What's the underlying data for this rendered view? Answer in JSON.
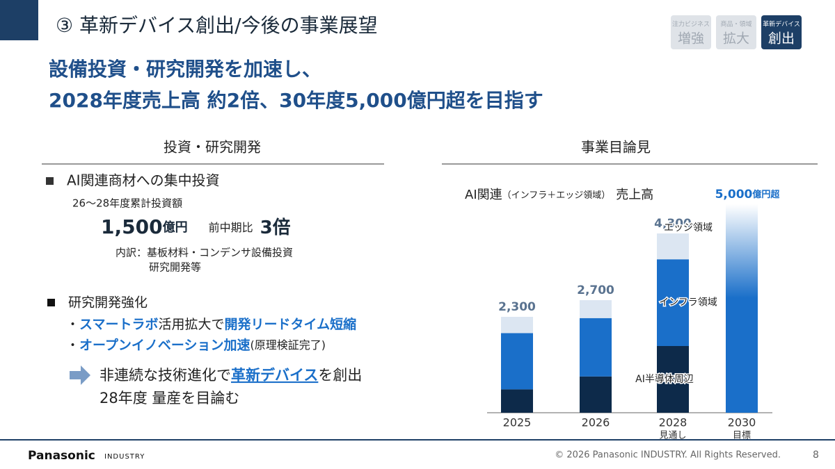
{
  "header": {
    "title": "③ 革新デバイス創出/今後の事業展望",
    "tabs": [
      {
        "small": "注力ビジネス",
        "big": "増強"
      },
      {
        "small": "商品・領域",
        "big": "拡大"
      },
      {
        "small": "革新デバイス",
        "big": "創出"
      }
    ]
  },
  "headline": [
    "設備投資・研究開発を加速し、",
    "2028年度売上高 約2倍、30年度5,000億円超を目指す"
  ],
  "left": {
    "heading": "投資・研究開発",
    "item1": {
      "title": "AI関連商材への集中投資",
      "sub": "26～28年度累計投資額",
      "amount": "1,500",
      "unit": "億円",
      "compare": "前中期比",
      "ratio": "3倍",
      "breakdown": [
        "内訳：基板材料・コンデンサ設備投資",
        "研究開発等"
      ]
    },
    "item2": {
      "title": "研究開発強化",
      "line1": [
        "・",
        "スマートラボ",
        "活用拡大で",
        "開発リードタイム短縮"
      ],
      "line2": [
        "・",
        "オープンイノベーション加速",
        "(原理検証完了)"
      ],
      "arrow": [
        "非連続な技術進化で",
        "革新デバイス",
        "を創出"
      ],
      "arrow2": "28年度 量産を目論む"
    }
  },
  "right": {
    "heading": "事業目論見"
  },
  "chart_data": {
    "type": "bar",
    "stacked": true,
    "title_parts": [
      "AI関連",
      "（インフラ＋エッジ領域）",
      "売上高"
    ],
    "categories": [
      "2025",
      "2026",
      "2028",
      "2030"
    ],
    "category_notes": [
      null,
      null,
      "見通し",
      "目標"
    ],
    "series": [
      {
        "name": "AI半導体周辺",
        "color": "#0d2a4a",
        "values": [
          560,
          870,
          1600,
          null
        ]
      },
      {
        "name": "インフラ領域",
        "color": "#1a6fc9",
        "values": [
          1350,
          1400,
          2080,
          null
        ]
      },
      {
        "name": "エッジ領域",
        "color": "#dce6f2",
        "values": [
          390,
          430,
          620,
          null
        ]
      }
    ],
    "totals": {
      "values": [
        2300,
        2700,
        4300,
        5000
      ],
      "value_labels": [
        "2,300",
        "2,700",
        "4,300",
        "5,000"
      ],
      "color": "#1a6fc9"
    },
    "total_suffix": "億円超"
  },
  "footer": {
    "brand": "Panasonic",
    "division": "INDUSTRY",
    "copyright": "© 2026 Panasonic INDUSTRY. All Rights Reserved.",
    "page": "8"
  }
}
